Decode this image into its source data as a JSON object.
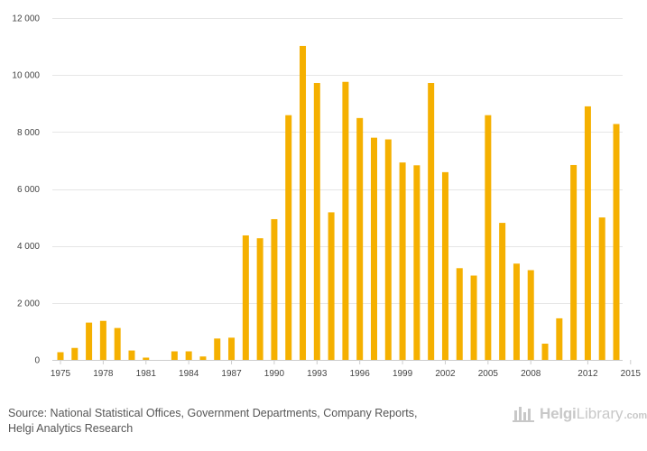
{
  "chart_data": {
    "type": "bar",
    "x": [
      1975,
      1976,
      1977,
      1978,
      1979,
      1980,
      1981,
      1982,
      1983,
      1984,
      1985,
      1986,
      1987,
      1988,
      1989,
      1990,
      1991,
      1992,
      1993,
      1994,
      1995,
      1996,
      1997,
      1998,
      1999,
      2000,
      2001,
      2002,
      2003,
      2004,
      2005,
      2006,
      2007,
      2008,
      2009,
      2010,
      2011,
      2012,
      2013,
      2014,
      2015
    ],
    "values": [
      270,
      420,
      1310,
      1370,
      1120,
      330,
      80,
      0,
      300,
      300,
      120,
      750,
      780,
      4370,
      4270,
      4940,
      8590,
      11020,
      9720,
      5180,
      9760,
      8490,
      7800,
      7740,
      6930,
      6830,
      9720,
      6590,
      3220,
      2960,
      8590,
      4810,
      3380,
      3150,
      570,
      1460,
      6840,
      8900,
      5000,
      8280,
      0
    ],
    "color": "#f5b000",
    "x_tick_labels": [
      "1975",
      "1978",
      "1981",
      "1984",
      "1987",
      "1990",
      "1993",
      "1996",
      "1999",
      "2002",
      "2005",
      "2008",
      "2012",
      "2015"
    ],
    "y_tick_labels": [
      "0",
      "2 000",
      "4 000",
      "6 000",
      "8 000",
      "10 000",
      "12 000"
    ],
    "y_tick_values": [
      0,
      2000,
      4000,
      6000,
      8000,
      10000,
      12000
    ],
    "ylim": [
      0,
      12000
    ],
    "title": "",
    "xlabel": "",
    "ylabel": "",
    "grid": true
  },
  "footer": {
    "source_line1": "Source: National Statistical Offices, Government Departments, Company Reports,",
    "source_line2": "Helgi Analytics Research"
  },
  "logo": {
    "name_bold": "Helgi",
    "name_rest": "Library",
    "suffix": ".com",
    "icon": "helgi-library-logo-icon"
  }
}
